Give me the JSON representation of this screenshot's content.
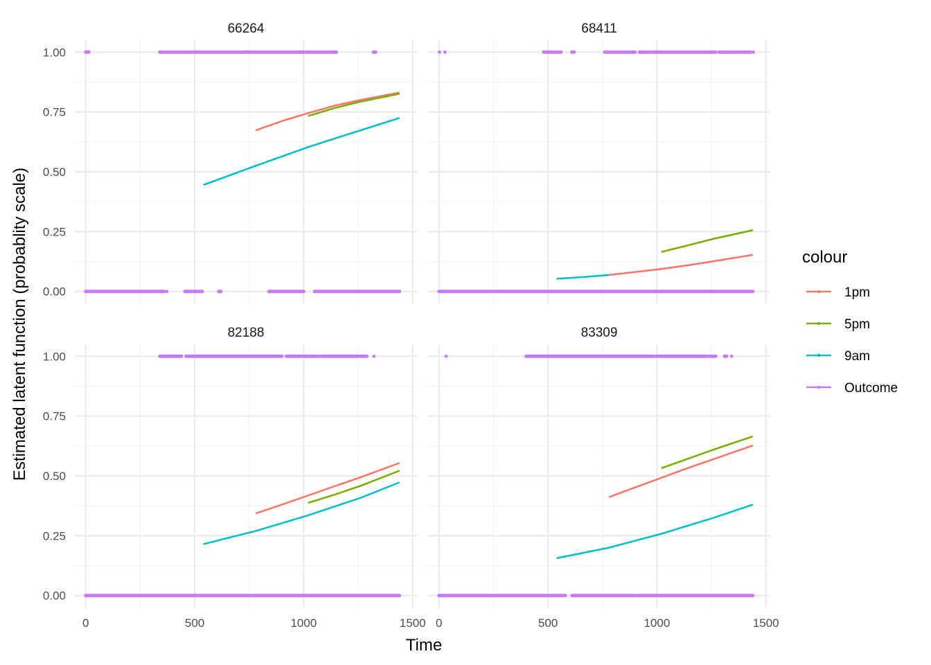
{
  "figure": {
    "xlabel": "Time",
    "ylabel": "Estimated latent function (probablity scale)",
    "legend_title": "colour",
    "legend_position": "right"
  },
  "colors": {
    "1pm": "#F8766D",
    "5pm": "#7CAE00",
    "9am": "#00BFC4",
    "Outcome": "#C77CFF",
    "grid_major": "#EBEBEB",
    "grid_minor": "#F3F3F3"
  },
  "chart_data": {
    "type": "line",
    "facets": [
      "66264",
      "68411",
      "82188",
      "83309"
    ],
    "xlim": [
      -50,
      1520
    ],
    "ylim": [
      -0.05,
      1.05
    ],
    "x_ticks": [
      0,
      500,
      1000,
      1500
    ],
    "x_tick_labels": [
      "0",
      "500",
      "1000",
      "1500"
    ],
    "y_ticks": [
      0,
      0.25,
      0.5,
      0.75,
      1
    ],
    "y_tick_labels": [
      "0.00",
      "0.25",
      "0.50",
      "0.75",
      "1.00"
    ],
    "grid": true,
    "legend": [
      "1pm",
      "5pm",
      "9am",
      "Outcome"
    ],
    "panels": [
      {
        "facet": "66264",
        "series": [
          {
            "name": "9am",
            "x": [
              540,
              780,
              1020,
              1260,
              1440
            ],
            "y": [
              0.445,
              0.525,
              0.603,
              0.673,
              0.725
            ]
          },
          {
            "name": "1pm",
            "x": [
              780,
              900,
              1020,
              1140,
              1260,
              1440
            ],
            "y": [
              0.673,
              0.712,
              0.745,
              0.776,
              0.8,
              0.831
            ]
          },
          {
            "name": "5pm",
            "x": [
              1020,
              1140,
              1260,
              1440
            ],
            "y": [
              0.733,
              0.766,
              0.793,
              0.826
            ]
          }
        ],
        "outcome_one": [
          [
            0,
            15
          ],
          [
            340,
            740
          ],
          [
            740,
            1000
          ],
          [
            1010,
            1150
          ],
          [
            1320,
            1330
          ]
        ],
        "outcome_zero": [
          [
            0,
            360
          ],
          [
            370,
            375
          ],
          [
            455,
            535
          ],
          [
            610,
            620
          ],
          [
            840,
            1000
          ],
          [
            1050,
            1440
          ]
        ]
      },
      {
        "facet": "68411",
        "series": [
          {
            "name": "9am",
            "x": [
              540,
              660,
              780
            ],
            "y": [
              0.053,
              0.06,
              0.069
            ]
          },
          {
            "name": "1pm",
            "x": [
              780,
              900,
              1020,
              1140,
              1260,
              1440
            ],
            "y": [
              0.069,
              0.081,
              0.094,
              0.109,
              0.126,
              0.153
            ]
          },
          {
            "name": "5pm",
            "x": [
              1020,
              1140,
              1260,
              1440
            ],
            "y": [
              0.165,
              0.192,
              0.22,
              0.256
            ]
          }
        ],
        "outcome_one": [
          [
            0,
            5
          ],
          [
            25,
            30
          ],
          [
            480,
            560
          ],
          [
            610,
            620
          ],
          [
            760,
            900
          ],
          [
            920,
            1270
          ],
          [
            1285,
            1390
          ],
          [
            1400,
            1430
          ],
          [
            1440,
            1445
          ]
        ],
        "outcome_zero": [
          [
            0,
            1440
          ]
        ]
      },
      {
        "facet": "82188",
        "series": [
          {
            "name": "9am",
            "x": [
              540,
              780,
              1020,
              1260,
              1440
            ],
            "y": [
              0.215,
              0.27,
              0.335,
              0.408,
              0.473
            ]
          },
          {
            "name": "1pm",
            "x": [
              780,
              900,
              1020,
              1140,
              1260,
              1440
            ],
            "y": [
              0.343,
              0.38,
              0.418,
              0.456,
              0.494,
              0.554
            ]
          },
          {
            "name": "5pm",
            "x": [
              1020,
              1140,
              1260,
              1440
            ],
            "y": [
              0.387,
              0.421,
              0.458,
              0.522
            ]
          }
        ],
        "outcome_one": [
          [
            340,
            440
          ],
          [
            460,
            900
          ],
          [
            920,
            1070
          ],
          [
            1080,
            1250
          ],
          [
            1260,
            1290
          ],
          [
            1320,
            1325
          ]
        ],
        "outcome_zero": [
          [
            0,
            1440
          ]
        ]
      },
      {
        "facet": "83309",
        "series": [
          {
            "name": "9am",
            "x": [
              540,
              780,
              1020,
              1260,
              1440
            ],
            "y": [
              0.156,
              0.2,
              0.258,
              0.325,
              0.38
            ]
          },
          {
            "name": "1pm",
            "x": [
              780,
              900,
              1020,
              1140,
              1260,
              1440
            ],
            "y": [
              0.411,
              0.452,
              0.492,
              0.532,
              0.57,
              0.627
            ]
          },
          {
            "name": "5pm",
            "x": [
              1020,
              1140,
              1260,
              1440
            ],
            "y": [
              0.532,
              0.571,
              0.61,
              0.665
            ]
          }
        ],
        "outcome_one": [
          [
            30,
            35
          ],
          [
            400,
            1000
          ],
          [
            1010,
            1230
          ],
          [
            1240,
            1270
          ],
          [
            1310,
            1320
          ],
          [
            1340,
            1345
          ]
        ],
        "outcome_zero": [
          [
            0,
            580
          ],
          [
            610,
            900
          ],
          [
            910,
            1440
          ]
        ]
      }
    ]
  }
}
